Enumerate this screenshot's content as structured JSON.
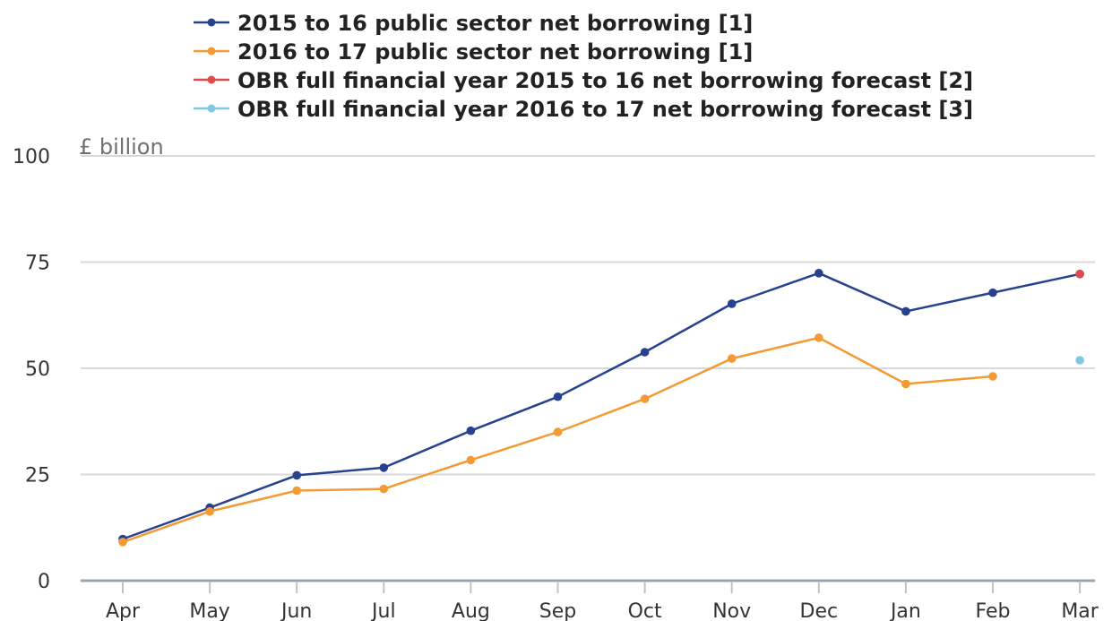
{
  "chart_data": {
    "type": "line",
    "ylabel": "£ billion",
    "ylim": [
      0,
      100
    ],
    "yticks": [
      0,
      25,
      50,
      75,
      100
    ],
    "categories": [
      "Apr",
      "May",
      "Jun",
      "Jul",
      "Aug",
      "Sep",
      "Oct",
      "Nov",
      "Dec",
      "Jan",
      "Feb",
      "Mar"
    ],
    "legend_position": "top",
    "grid": true,
    "series": [
      {
        "name": "2015 to 16 public sector net borrowing [1]",
        "color": "#27418f",
        "values": [
          9.8,
          17.2,
          24.8,
          26.6,
          35.3,
          43.3,
          53.8,
          65.2,
          72.4,
          63.4,
          67.8,
          72.2
        ]
      },
      {
        "name": "2016 to 17 public sector net borrowing [1]",
        "color": "#f39a34",
        "values": [
          9.1,
          16.3,
          21.2,
          21.6,
          28.4,
          35.0,
          42.8,
          52.3,
          57.2,
          46.3,
          48.1,
          null
        ]
      },
      {
        "name": "OBR full financial year 2015 to 16 net borrowing forecast [2]",
        "color": "#e04a4a",
        "values": [
          null,
          null,
          null,
          null,
          null,
          null,
          null,
          null,
          null,
          null,
          null,
          72.2
        ]
      },
      {
        "name": "OBR full financial year 2016 to 17 net borrowing forecast [3]",
        "color": "#7ec8e3",
        "values": [
          null,
          null,
          null,
          null,
          null,
          null,
          null,
          null,
          null,
          null,
          null,
          51.9
        ]
      }
    ]
  }
}
